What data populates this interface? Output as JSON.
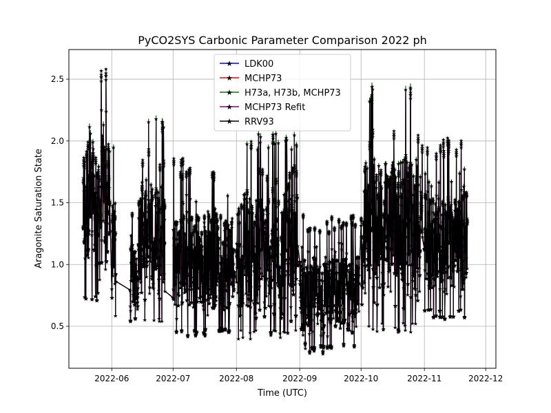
{
  "chart_data": {
    "type": "line",
    "title": "PyCO2SYS Carbonic Parameter Comparison 2022 ph",
    "xlabel": "Time (UTC)",
    "ylabel": "Aragonite Saturation State",
    "xlim": [
      "2022-05-11",
      "2022-12-06"
    ],
    "ylim": [
      0.16,
      2.74
    ],
    "grid": true,
    "legend_position": "top-center",
    "x_ticks": [
      {
        "date": "2022-06-01",
        "label": "2022-06"
      },
      {
        "date": "2022-07-01",
        "label": "2022-07"
      },
      {
        "date": "2022-08-01",
        "label": "2022-08"
      },
      {
        "date": "2022-09-01",
        "label": "2022-09"
      },
      {
        "date": "2022-10-01",
        "label": "2022-10"
      },
      {
        "date": "2022-11-01",
        "label": "2022-11"
      },
      {
        "date": "2022-12-01",
        "label": "2022-12"
      }
    ],
    "y_ticks": [
      {
        "value": 0.5,
        "label": "0.5"
      },
      {
        "value": 1.0,
        "label": "1.0"
      },
      {
        "value": 1.5,
        "label": "1.5"
      },
      {
        "value": 2.0,
        "label": "2.0"
      },
      {
        "value": 2.5,
        "label": "2.5"
      }
    ],
    "marker": "star",
    "series": [
      {
        "name": "LDK00",
        "color": "#0000ff",
        "offset": -0.02
      },
      {
        "name": "MCHP73",
        "color": "#ff0000",
        "offset": -0.05
      },
      {
        "name": "H73a, H73b, MCHP73",
        "color": "#008000",
        "offset": 0.03
      },
      {
        "name": "MCHP73 Refit",
        "color": "#800080",
        "offset": -0.02
      },
      {
        "name": "RRV93",
        "color": "#000000",
        "offset": 0.0
      }
    ],
    "segments": [
      {
        "start": "2022-05-18",
        "end": "2022-05-31",
        "low": 0.7,
        "mid": 1.45,
        "high": 2.6
      },
      {
        "start": "2022-06-01",
        "end": "2022-06-03",
        "low": 0.58,
        "mid": 1.2,
        "high": 2.05
      },
      {
        "start": "2022-06-10",
        "end": "2022-06-14",
        "low": 0.52,
        "mid": 1.0,
        "high": 1.45
      },
      {
        "start": "2022-06-14",
        "end": "2022-06-27",
        "low": 0.5,
        "mid": 1.05,
        "high": 2.2
      },
      {
        "start": "2022-07-01",
        "end": "2022-07-31",
        "low": 0.42,
        "mid": 1.0,
        "high": 1.85
      },
      {
        "start": "2022-08-01",
        "end": "2022-08-31",
        "low": 0.4,
        "mid": 1.0,
        "high": 2.08
      },
      {
        "start": "2022-09-01",
        "end": "2022-09-30",
        "low": 0.28,
        "mid": 0.7,
        "high": 1.4
      },
      {
        "start": "2022-10-01",
        "end": "2022-10-31",
        "low": 0.45,
        "mid": 1.0,
        "high": 2.46
      },
      {
        "start": "2022-11-01",
        "end": "2022-11-22",
        "low": 0.56,
        "mid": 1.1,
        "high": 2.01
      }
    ]
  }
}
